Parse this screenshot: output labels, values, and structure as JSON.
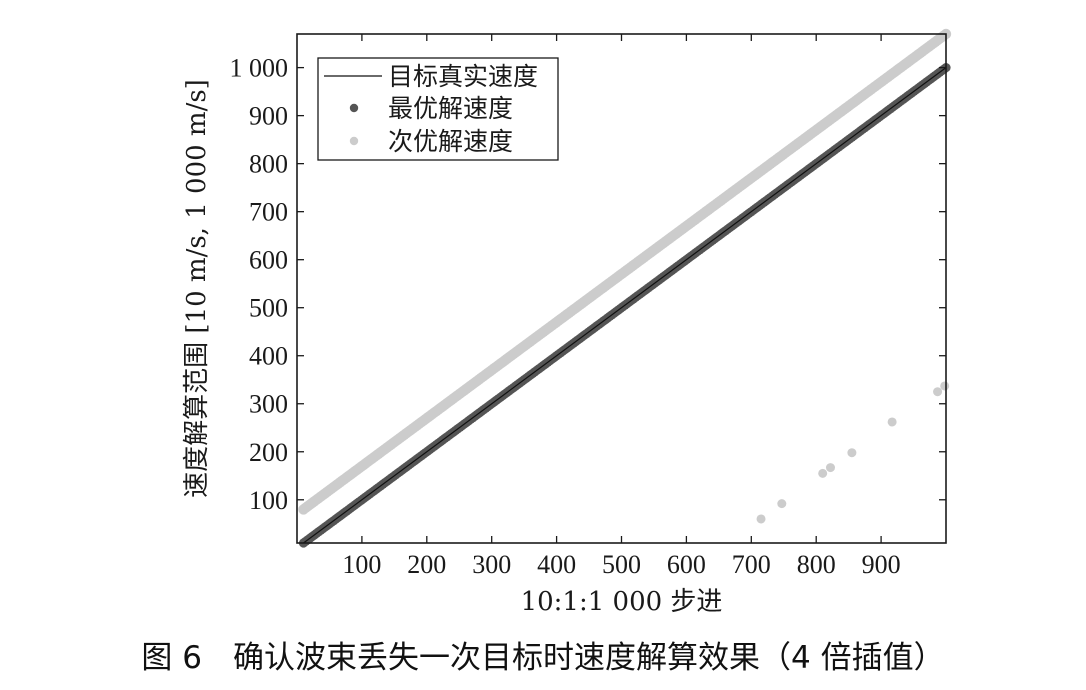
{
  "chart_data": {
    "type": "scatter",
    "xlabel": "10:1:1 000 步进",
    "ylabel": "速度解算范围 [10 m/s, 1 000 m/s]",
    "xlim": [
      0,
      1000
    ],
    "ylim": [
      10,
      1070
    ],
    "xticks": [
      100,
      200,
      300,
      400,
      500,
      600,
      700,
      800,
      900
    ],
    "xtick_labels": [
      "100",
      "200",
      "300",
      "400",
      "500",
      "600",
      "700",
      "800",
      "900"
    ],
    "yticks": [
      100,
      200,
      300,
      400,
      500,
      600,
      700,
      800,
      900,
      1000
    ],
    "ytick_labels": [
      "100",
      "200",
      "300",
      "400",
      "500",
      "600",
      "700",
      "800",
      "900",
      "1 000"
    ],
    "grid": false,
    "legend_position": "top-left",
    "series": [
      {
        "name": "目标真实速度",
        "kind": "line",
        "color": "#111111",
        "x_range": [
          10,
          1000
        ],
        "y_equals_x": true
      },
      {
        "name": "最优解速度",
        "kind": "points",
        "color": "#555555",
        "x_range": [
          10,
          1000
        ],
        "y_equals_x": true
      },
      {
        "name": "次优解速度",
        "kind": "points",
        "color": "#cccccc",
        "main_x_range": [
          10,
          1000
        ],
        "main_y_range": [
          80,
          1070
        ],
        "outliers": [
          {
            "x": 715,
            "y": 60
          },
          {
            "x": 747,
            "y": 92
          },
          {
            "x": 810,
            "y": 155
          },
          {
            "x": 822,
            "y": 167
          },
          {
            "x": 855,
            "y": 198
          },
          {
            "x": 917,
            "y": 262
          },
          {
            "x": 987,
            "y": 325
          },
          {
            "x": 998,
            "y": 337
          }
        ]
      }
    ]
  },
  "caption": "图 6　确认波束丢失一次目标时速度解算效果（4 倍插值）"
}
